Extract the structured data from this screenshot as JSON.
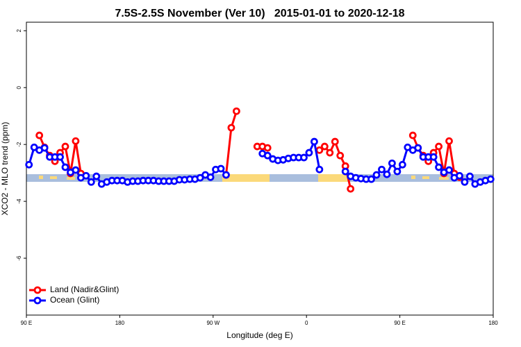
{
  "chart_data": {
    "type": "line",
    "title": "7.5S-2.5S November (Ver 10)   2015-01-01 to 2020-12-18",
    "xlabel": "Longitude (deg E)",
    "ylabel": "XCO2 - MLO trend (ppm)",
    "xlim": [
      90,
      540
    ],
    "ylim": [
      -8,
      2.3
    ],
    "xticks": [
      {
        "value": 90,
        "label": "90 E"
      },
      180,
      {
        "value": 270,
        "label": "90 W"
      },
      {
        "value": 360,
        "label": "0"
      },
      {
        "value": 450,
        "label": "90 E"
      },
      {
        "value": 540,
        "label": "180"
      }
    ],
    "yticks": [
      -6,
      -4,
      -2,
      0,
      2
    ],
    "legend": "bottom-left",
    "x": [
      92.5,
      97.5,
      102.5,
      107.5,
      112.5,
      117.5,
      122.5,
      127.5,
      132.5,
      137.5,
      142.5,
      147.5,
      152.5,
      157.5,
      162.5,
      167.5,
      172.5,
      177.5,
      182.5,
      187.5,
      192.5,
      197.5,
      202.5,
      207.5,
      212.5,
      217.5,
      222.5,
      227.5,
      232.5,
      237.5,
      242.5,
      247.5,
      252.5,
      257.5,
      262.5,
      267.5,
      272.5,
      277.5,
      282.5,
      287.5,
      292.5,
      297.5,
      302.5,
      307.5,
      312.5,
      317.5,
      322.5,
      327.5,
      332.5,
      337.5,
      342.5,
      347.5,
      352.5,
      357.5,
      362.5,
      367.5,
      372.5,
      377.5,
      382.5,
      387.5,
      392.5,
      397.5,
      402.5,
      407.5,
      412.5,
      417.5,
      422.5,
      427.5,
      432.5,
      437.5,
      442.5,
      447.5,
      452.5,
      457.5,
      462.5,
      467.5,
      472.5,
      477.5,
      482.5,
      487.5,
      492.5,
      497.5,
      502.5,
      507.5,
      512.5,
      517.5,
      522.5,
      527.5,
      532.5,
      537.5
    ],
    "series": [
      {
        "name": "Land (Nadir&Glint)",
        "color": "#ff0000",
        "values": [
          null,
          null,
          -1.68,
          -2.1,
          -2.39,
          -2.59,
          -2.29,
          -2.07,
          -3.02,
          -1.88,
          -3.02,
          null,
          null,
          null,
          null,
          null,
          null,
          null,
          null,
          null,
          null,
          null,
          null,
          null,
          null,
          null,
          null,
          null,
          null,
          null,
          null,
          null,
          null,
          null,
          null,
          null,
          null,
          null,
          -3.07,
          -1.41,
          -0.83,
          null,
          null,
          null,
          -2.07,
          -2.07,
          -2.12,
          null,
          null,
          null,
          null,
          null,
          null,
          null,
          null,
          null,
          -2.2,
          -2.07,
          -2.29,
          -1.9,
          -2.39,
          -2.76,
          -3.56,
          null,
          null,
          null,
          null,
          null,
          null,
          null,
          null,
          null,
          null,
          null,
          -1.68,
          -2.12,
          -2.39,
          -2.59,
          -2.29,
          -2.07,
          -3.02,
          -1.88,
          -3.02,
          -3.15,
          null,
          null,
          null,
          null,
          null,
          null
        ]
      },
      {
        "name": "Ocean (Glint)",
        "color": "#0000ff",
        "values": [
          -2.71,
          -2.1,
          -2.2,
          -2.12,
          -2.44,
          -2.44,
          -2.44,
          -2.8,
          -2.98,
          -2.9,
          -3.17,
          -3.1,
          -3.32,
          -3.12,
          -3.39,
          -3.32,
          -3.27,
          -3.27,
          -3.27,
          -3.32,
          -3.29,
          -3.29,
          -3.27,
          -3.27,
          -3.27,
          -3.29,
          -3.29,
          -3.29,
          -3.29,
          -3.24,
          -3.24,
          -3.22,
          -3.22,
          -3.17,
          -3.07,
          -3.15,
          -2.88,
          -2.85,
          -3.07,
          null,
          null,
          null,
          null,
          null,
          null,
          -2.32,
          -2.39,
          -2.51,
          -2.56,
          -2.54,
          -2.49,
          -2.46,
          -2.46,
          -2.46,
          -2.29,
          -1.9,
          -2.88,
          null,
          null,
          null,
          null,
          -2.95,
          -3.12,
          -3.17,
          -3.2,
          -3.22,
          -3.22,
          -3.07,
          -2.88,
          -3.05,
          -2.66,
          -2.95,
          -2.71,
          -2.1,
          -2.2,
          -2.12,
          -2.44,
          -2.44,
          -2.44,
          -2.8,
          -2.98,
          -2.9,
          -3.17,
          -3.1,
          -3.32,
          -3.12,
          -3.39,
          -3.32,
          -3.27,
          -3.22
        ]
      }
    ]
  }
}
